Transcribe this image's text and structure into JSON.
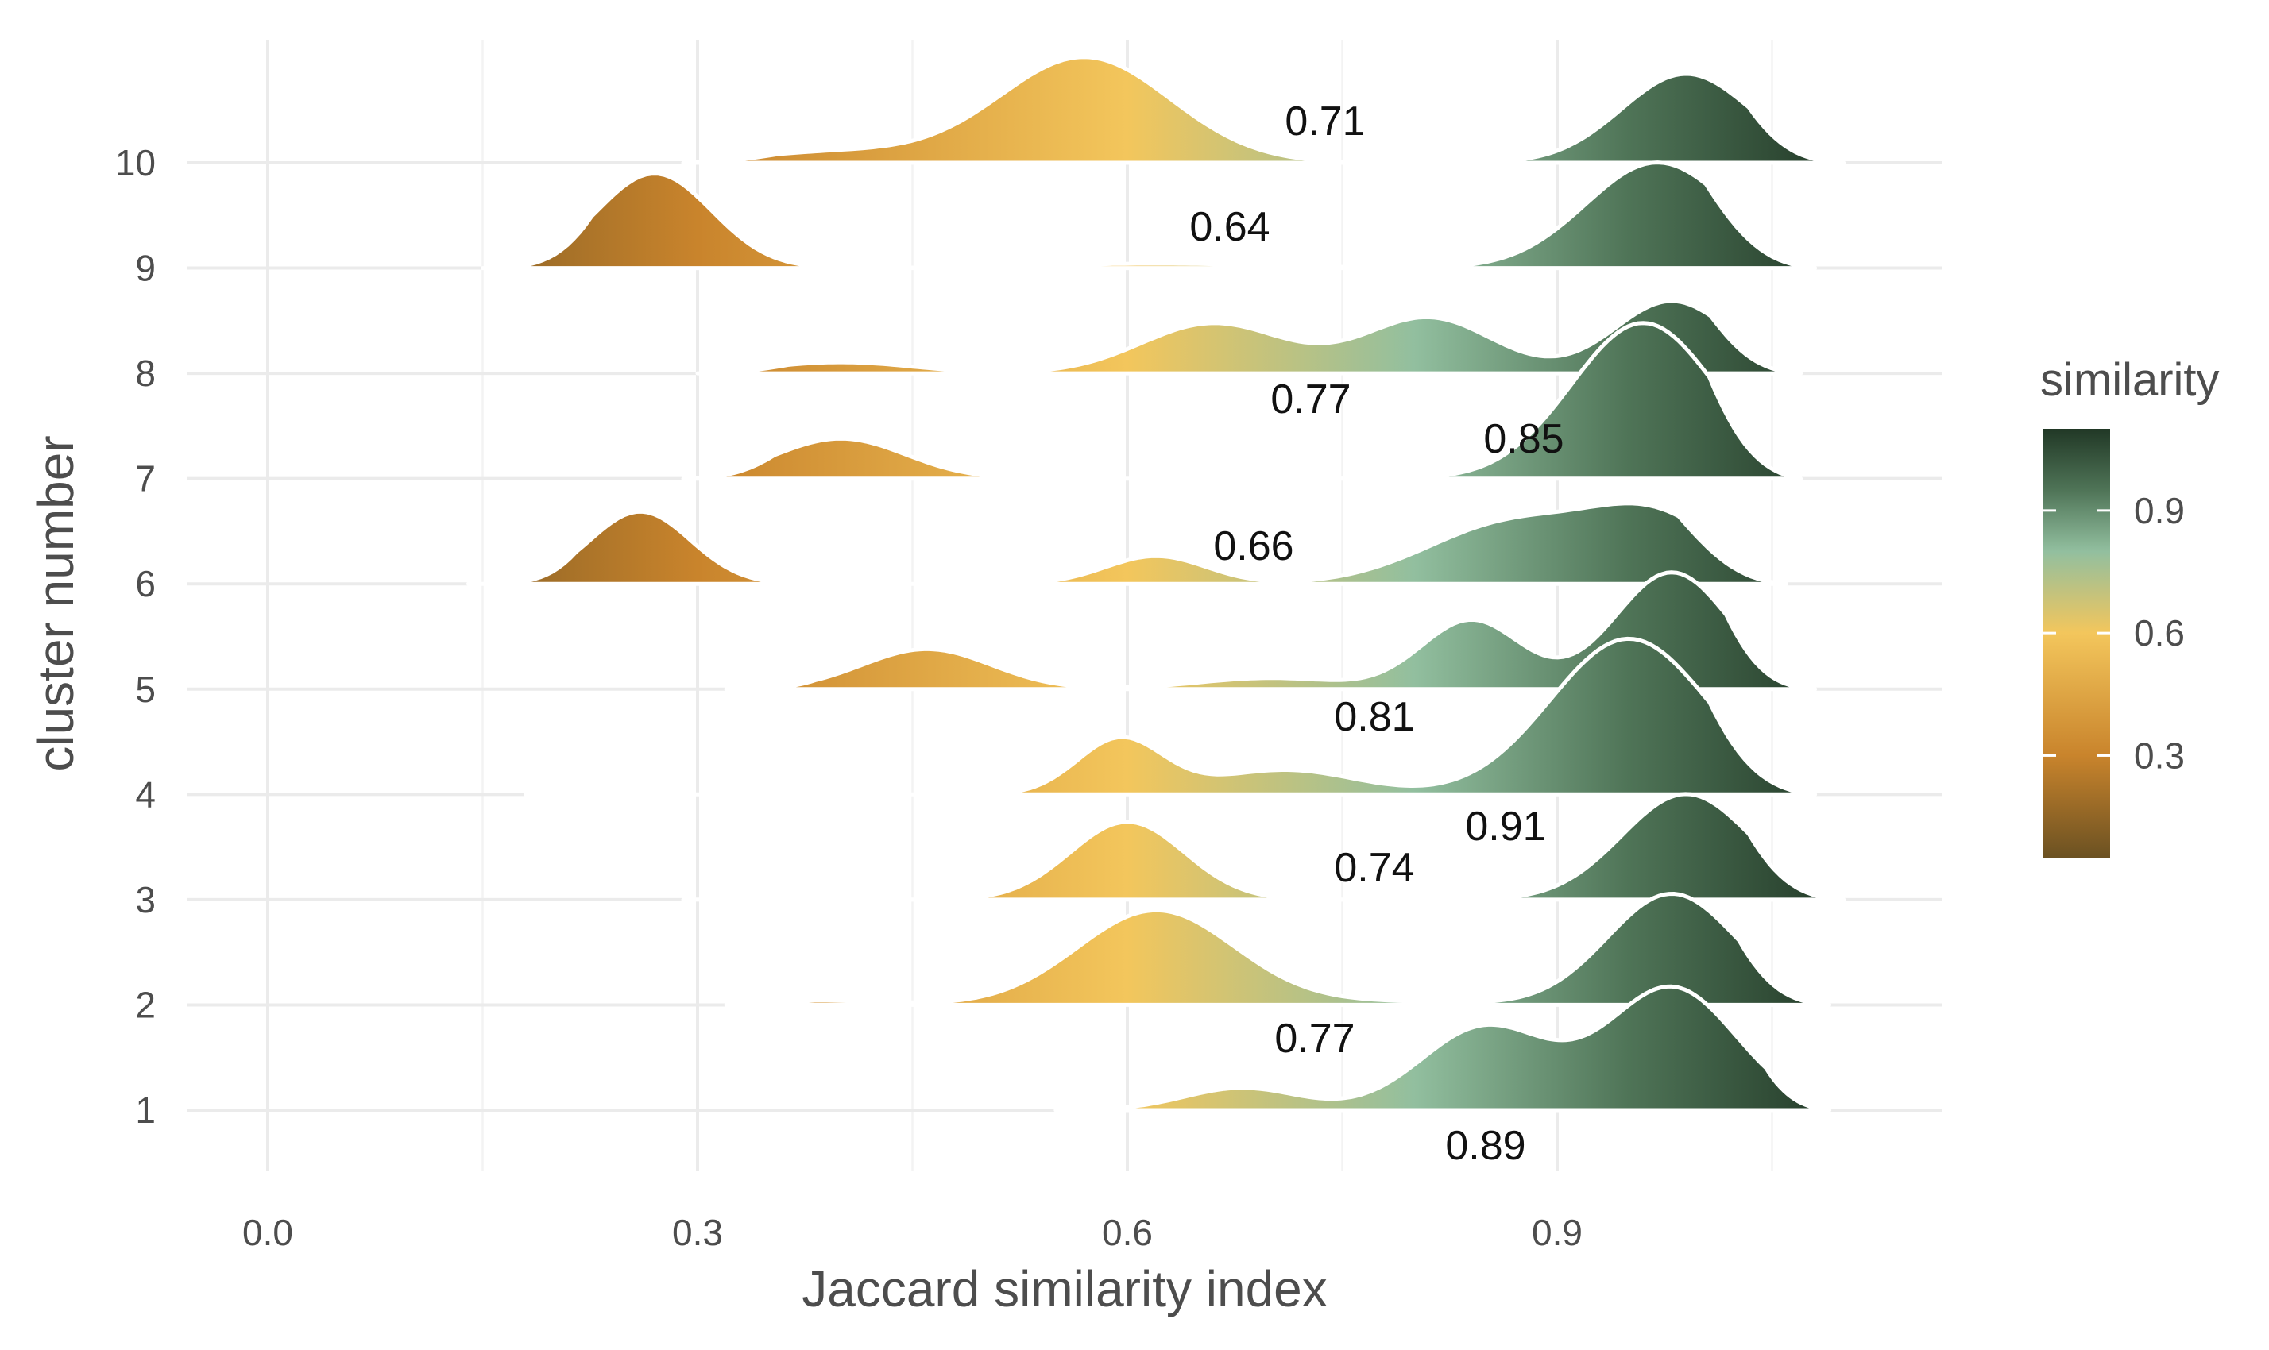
{
  "chart_data": {
    "type": "ridgeline",
    "title": "",
    "xlabel": "Jaccard similarity index",
    "ylabel": "cluster number",
    "xlim": [
      -0.1,
      1.17
    ],
    "x_ticks": [
      0.0,
      0.3,
      0.6,
      0.9
    ],
    "x_tick_labels": [
      "0.0",
      "0.3",
      "0.6",
      "0.9"
    ],
    "y_tick_labels": [
      "1",
      "2",
      "3",
      "4",
      "5",
      "6",
      "7",
      "8",
      "9",
      "10"
    ],
    "grid": true,
    "series": [
      {
        "cluster": "1",
        "mean_label": "0.89",
        "mean": 0.89,
        "peaks": [
          {
            "mu": 0.68,
            "sigma": 0.04,
            "height": 0.2
          },
          {
            "mu": 0.85,
            "sigma": 0.045,
            "height": 0.75
          },
          {
            "mu": 0.98,
            "sigma": 0.045,
            "height": 1.1
          }
        ],
        "min": 0.55,
        "max": 1.09
      },
      {
        "cluster": "2",
        "mean_label": "0.77",
        "mean": 0.77,
        "peaks": [
          {
            "mu": 0.38,
            "sigma": 0.05,
            "height": 0.04
          },
          {
            "mu": 0.62,
            "sigma": 0.055,
            "height": 0.85
          },
          {
            "mu": 0.78,
            "sigma": 0.06,
            "height": 0.03
          },
          {
            "mu": 0.98,
            "sigma": 0.045,
            "height": 1.0
          }
        ],
        "min": 0.32,
        "max": 1.09
      },
      {
        "cluster": "3",
        "mean_label": "0.74",
        "mean": 0.74,
        "peaks": [
          {
            "mu": 0.35,
            "sigma": 0.04,
            "height": 0.02
          },
          {
            "mu": 0.6,
            "sigma": 0.04,
            "height": 0.7
          },
          {
            "mu": 0.99,
            "sigma": 0.045,
            "height": 0.95
          }
        ],
        "min": 0.29,
        "max": 1.1
      },
      {
        "cluster": "4",
        "mean_label": "0.91",
        "mean": 0.91,
        "peaks": [
          {
            "mu": 0.22,
            "sigma": 0.025,
            "height": 0.03
          },
          {
            "mu": 0.595,
            "sigma": 0.03,
            "height": 0.5
          },
          {
            "mu": 0.71,
            "sigma": 0.05,
            "height": 0.22
          },
          {
            "mu": 0.95,
            "sigma": 0.055,
            "height": 1.4
          }
        ],
        "min": 0.18,
        "max": 1.08
      },
      {
        "cluster": "5",
        "mean_label": "0.81",
        "mean": 0.81,
        "peaks": [
          {
            "mu": 0.46,
            "sigma": 0.045,
            "height": 0.36
          },
          {
            "mu": 0.7,
            "sigma": 0.05,
            "height": 0.1
          },
          {
            "mu": 0.84,
            "sigma": 0.035,
            "height": 0.62
          },
          {
            "mu": 0.98,
            "sigma": 0.04,
            "height": 1.05
          }
        ],
        "min": 0.32,
        "max": 1.08
      },
      {
        "cluster": "6",
        "mean_label": "0.66",
        "mean": 0.66,
        "peaks": [
          {
            "mu": 0.26,
            "sigma": 0.035,
            "height": 0.65
          },
          {
            "mu": 0.62,
            "sigma": 0.035,
            "height": 0.25
          },
          {
            "mu": 0.87,
            "sigma": 0.06,
            "height": 0.55
          },
          {
            "mu": 0.97,
            "sigma": 0.045,
            "height": 0.55
          }
        ],
        "min": 0.14,
        "max": 1.06
      },
      {
        "cluster": "7",
        "mean_label": "0.85",
        "mean": 0.85,
        "peaks": [
          {
            "mu": 0.4,
            "sigma": 0.045,
            "height": 0.36
          },
          {
            "mu": 0.96,
            "sigma": 0.05,
            "height": 1.4
          }
        ],
        "min": 0.29,
        "max": 1.07
      },
      {
        "cluster": "8",
        "mean_label": "0.77",
        "mean": 0.77,
        "peaks": [
          {
            "mu": 0.4,
            "sigma": 0.05,
            "height": 0.1
          },
          {
            "mu": 0.66,
            "sigma": 0.05,
            "height": 0.45
          },
          {
            "mu": 0.81,
            "sigma": 0.045,
            "height": 0.5
          },
          {
            "mu": 0.98,
            "sigma": 0.04,
            "height": 0.65
          }
        ],
        "min": 0.3,
        "max": 1.07
      },
      {
        "cluster": "9",
        "mean_label": "0.64",
        "mean": 0.64,
        "peaks": [
          {
            "mu": 0.27,
            "sigma": 0.04,
            "height": 0.85
          },
          {
            "mu": 0.62,
            "sigma": 0.08,
            "height": 0.04
          },
          {
            "mu": 0.97,
            "sigma": 0.05,
            "height": 0.95
          }
        ],
        "min": 0.15,
        "max": 1.08
      },
      {
        "cluster": "10",
        "mean_label": "0.71",
        "mean": 0.71,
        "peaks": [
          {
            "mu": 0.4,
            "sigma": 0.06,
            "height": 0.1
          },
          {
            "mu": 0.57,
            "sigma": 0.06,
            "height": 0.95
          },
          {
            "mu": 0.99,
            "sigma": 0.045,
            "height": 0.8
          }
        ],
        "min": 0.29,
        "max": 1.1
      }
    ],
    "legend": {
      "title": "similarity",
      "position": "right",
      "range": [
        0.05,
        1.1
      ],
      "ticks": [
        0.3,
        0.6,
        0.9
      ],
      "tick_labels": [
        "0.3",
        "0.6",
        "0.9"
      ],
      "colors": [
        {
          "value": 0.05,
          "color": "#6b5122"
        },
        {
          "value": 0.3,
          "color": "#c9842c"
        },
        {
          "value": 0.6,
          "color": "#f3c65c"
        },
        {
          "value": 0.8,
          "color": "#92bf9f"
        },
        {
          "value": 0.95,
          "color": "#4f7457"
        },
        {
          "value": 1.1,
          "color": "#213826"
        }
      ]
    }
  }
}
